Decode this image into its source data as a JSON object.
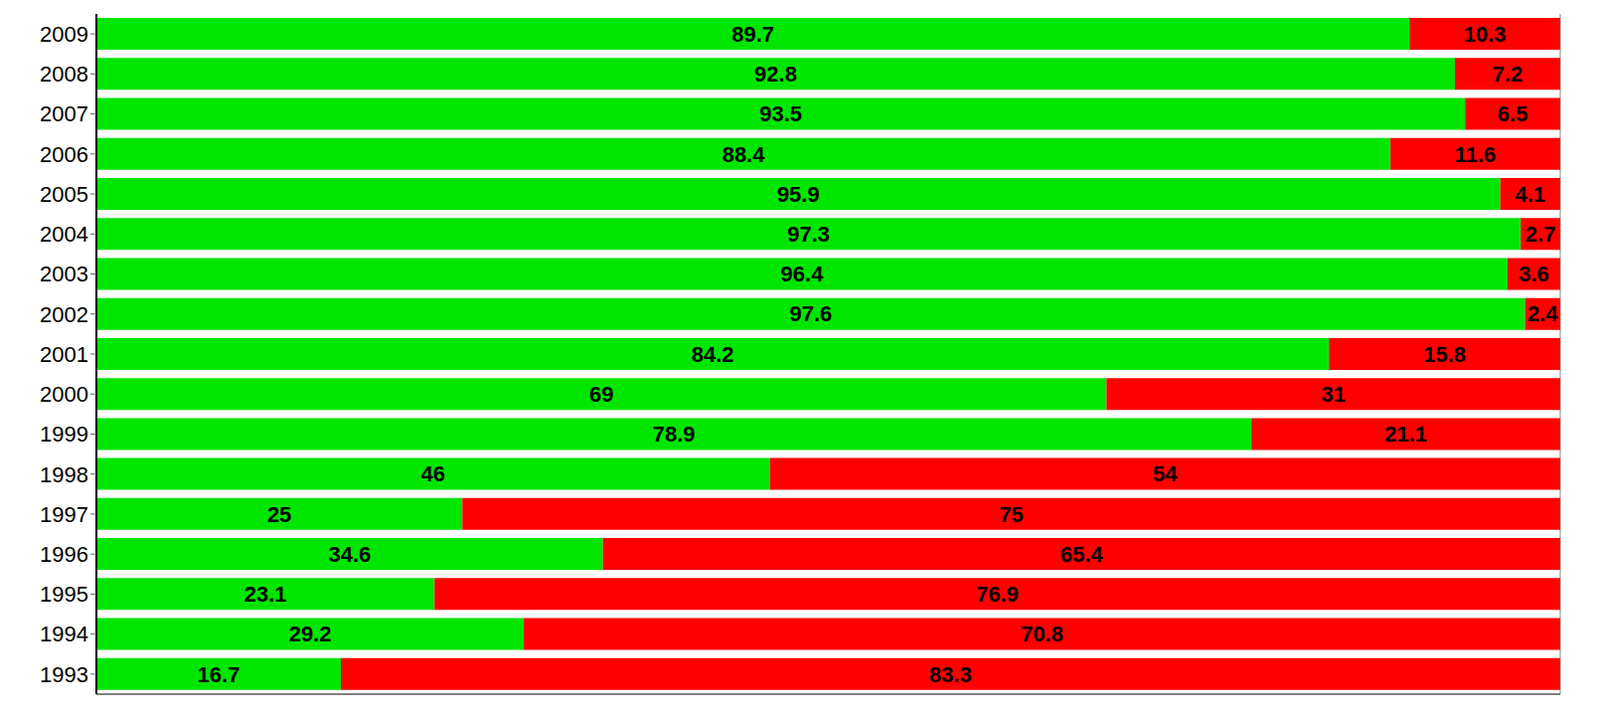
{
  "chart_data": {
    "type": "bar",
    "orientation": "horizontal",
    "stacked": true,
    "data_labels": true,
    "grid": true,
    "tick_labels": "y",
    "categories": [
      "2009",
      "2008",
      "2007",
      "2006",
      "2005",
      "2004",
      "2003",
      "2002",
      "2001",
      "2000",
      "1999",
      "1998",
      "1997",
      "1996",
      "1995",
      "1994",
      "1993"
    ],
    "series": [
      {
        "color": "#00e600",
        "values": [
          89.7,
          92.8,
          93.5,
          88.4,
          95.9,
          97.3,
          96.4,
          97.6,
          84.2,
          69,
          78.9,
          46,
          25,
          34.6,
          23.1,
          29.2,
          16.7
        ]
      },
      {
        "color": "#ff0000",
        "values": [
          10.3,
          7.2,
          6.5,
          11.6,
          4.1,
          2.7,
          3.6,
          2.4,
          15.8,
          31,
          21.1,
          54,
          75,
          65.4,
          76.9,
          70.8,
          83.3
        ]
      }
    ],
    "xlim": [
      0,
      100
    ],
    "xticks": [
      0,
      20,
      40,
      60,
      80,
      100
    ]
  }
}
